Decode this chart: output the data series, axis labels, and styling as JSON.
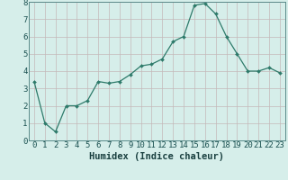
{
  "x": [
    0,
    1,
    2,
    3,
    4,
    5,
    6,
    7,
    8,
    9,
    10,
    11,
    12,
    13,
    14,
    15,
    16,
    17,
    18,
    19,
    20,
    21,
    22,
    23
  ],
  "y": [
    3.4,
    1.0,
    0.5,
    2.0,
    2.0,
    2.3,
    3.4,
    3.3,
    3.4,
    3.8,
    4.3,
    4.4,
    4.7,
    5.7,
    6.0,
    7.8,
    7.9,
    7.3,
    6.0,
    5.0,
    4.0,
    4.0,
    4.2,
    3.9
  ],
  "xlabel": "Humidex (Indice chaleur)",
  "ylim": [
    0,
    8
  ],
  "xlim": [
    -0.5,
    23.5
  ],
  "line_color": "#2d7a6a",
  "marker_color": "#2d7a6a",
  "bg_color": "#d6eeea",
  "grid_color": "#c4b8b8",
  "axis_label_color": "#1a4040",
  "tick_label_color": "#1a5050",
  "yticks": [
    0,
    1,
    2,
    3,
    4,
    5,
    6,
    7,
    8
  ],
  "xticks": [
    0,
    1,
    2,
    3,
    4,
    5,
    6,
    7,
    8,
    9,
    10,
    11,
    12,
    13,
    14,
    15,
    16,
    17,
    18,
    19,
    20,
    21,
    22,
    23
  ],
  "xlabel_fontsize": 7.5,
  "tick_fontsize": 6.5
}
